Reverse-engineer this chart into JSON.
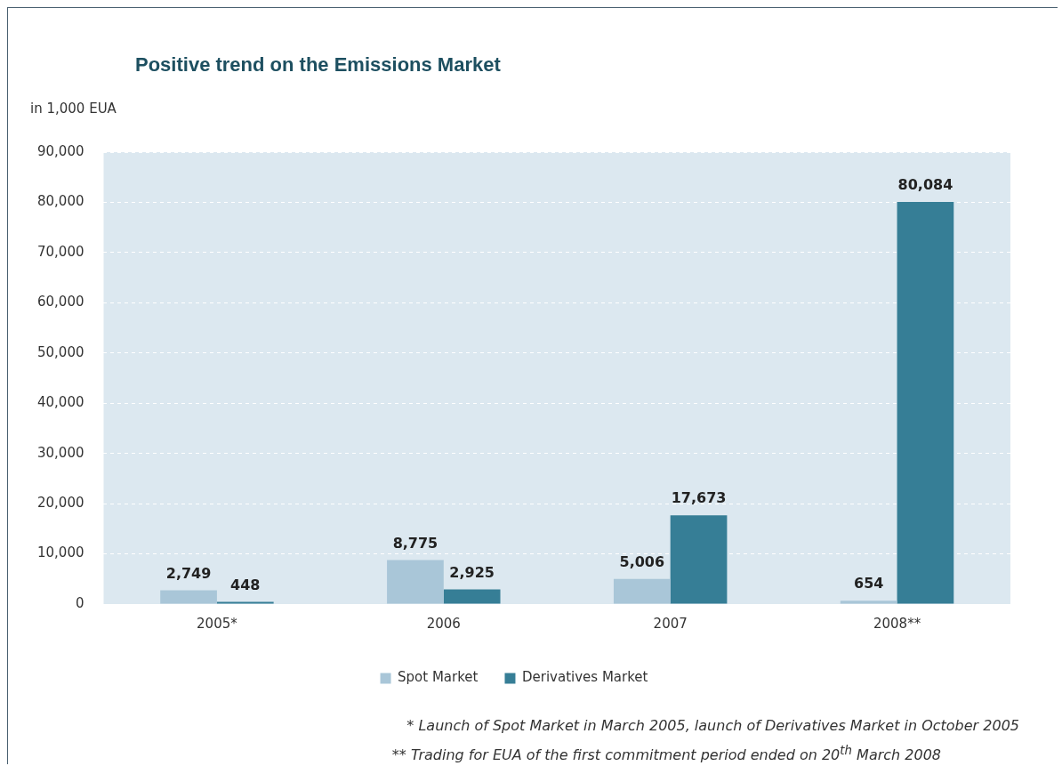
{
  "chart_data": {
    "type": "bar",
    "title": "Positive trend on the Emissions Market",
    "ylabel": "in 1,000 EUA",
    "categories": [
      "2005*",
      "2006",
      "2007",
      "2008**"
    ],
    "series": [
      {
        "name": "Spot Market",
        "color": "#a9c6d8",
        "values": [
          2749,
          8775,
          5006,
          654
        ],
        "value_labels": [
          "2,749",
          "8,775",
          "5,006",
          "654"
        ]
      },
      {
        "name": "Derivatives Market",
        "color": "#367e96",
        "values": [
          448,
          2925,
          17673,
          80084
        ],
        "value_labels": [
          "448",
          "2,925",
          "17,673",
          "80,084"
        ]
      }
    ],
    "ylim": [
      0,
      90000
    ],
    "yticks": [
      0,
      {
        "value": 10000,
        "label": "10,000"
      },
      {
        "value": 20000,
        "label": "20,000"
      },
      {
        "value": 30000,
        "label": "30,000"
      },
      {
        "value": 40000,
        "label": "40,000"
      },
      {
        "value": 50000,
        "label": "50,000"
      },
      {
        "value": 60000,
        "label": "60,000"
      },
      {
        "value": 70000,
        "label": "70,000"
      },
      {
        "value": 80000,
        "label": "80,000"
      },
      {
        "value": 90000,
        "label": "90,000"
      }
    ],
    "grid": "y",
    "legend": "bottom",
    "annotations": [
      "* Launch of Spot Market in March 2005, launch of Derivatives Market in October 2005",
      "** Trading for EUA of the first commitment period ended on 20$^{th}$ March 2008"
    ]
  }
}
